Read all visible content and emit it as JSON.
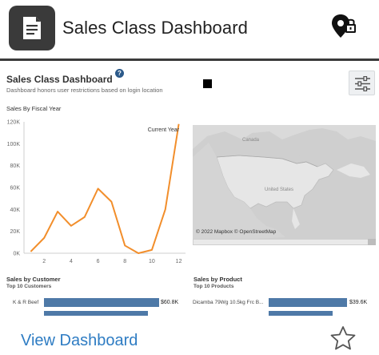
{
  "header": {
    "title": "Sales Class Dashboard",
    "app_icon": "document-icon",
    "location_icon": "location-lock-icon"
  },
  "dashboard": {
    "title": "Sales Class Dashboard",
    "help_label": "?",
    "subtitle": "Dashboard honors user restrictions based on login location",
    "filter_icon": "sliders-icon"
  },
  "sales_by_year": {
    "title": "Sales By Fiscal Year",
    "annotation": "Current Year"
  },
  "chart_data": {
    "type": "line",
    "title": "Sales By Fiscal Year",
    "x": [
      1,
      2,
      3,
      4,
      5,
      6,
      7,
      8,
      9,
      10,
      11,
      12
    ],
    "values": [
      1500,
      14000,
      38000,
      25000,
      33000,
      59000,
      47000,
      7000,
      0,
      3000,
      40000,
      118000
    ],
    "x_ticks": [
      "2",
      "4",
      "6",
      "8",
      "10",
      "12"
    ],
    "y_ticks": [
      "0K",
      "20K",
      "40K",
      "60K",
      "80K",
      "100K",
      "120K"
    ],
    "ylim": [
      0,
      120000
    ],
    "xlim": [
      0.5,
      12.5
    ],
    "color": "#f28e2b",
    "annotation": "Current Year",
    "grid": false
  },
  "map": {
    "attribution": "© 2022 Mapbox © OpenStreetMap",
    "labels": [
      "Canada",
      "United States"
    ]
  },
  "customers": {
    "title": "Sales by Customer",
    "subtitle": "Top 10 Customers",
    "rows": [
      {
        "label": "K & R Beef",
        "value": "$60.8K",
        "fraction": 1.0
      },
      {
        "label": "",
        "value": "",
        "fraction": 0.9
      }
    ]
  },
  "products": {
    "title": "Sales by Product",
    "subtitle": "Top 10 Products",
    "rows": [
      {
        "label": "Dicamba 79Wg 10.5kg Frc B...",
        "value": "$39.6K",
        "fraction": 1.0
      },
      {
        "label": "",
        "value": "",
        "fraction": 0.8
      }
    ]
  },
  "footer": {
    "link_label": "View Dashboard",
    "favorite_icon": "star-icon"
  },
  "colors": {
    "accent_link": "#2e7cc3",
    "bar": "#4e79a7",
    "line": "#f28e2b",
    "help": "#2c5a8a"
  }
}
